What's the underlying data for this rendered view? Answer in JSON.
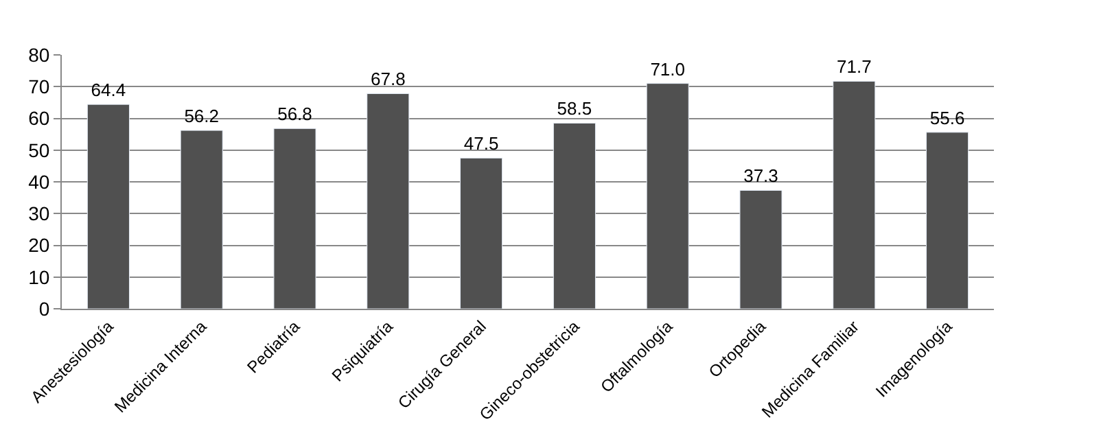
{
  "chart_data": {
    "type": "bar",
    "categories": [
      "Anestesiología",
      "Medicina Interna",
      "Pediatría",
      "Psiquiatría",
      "Cirugía General",
      "Gineco-obstetricia",
      "Oftalmología",
      "Ortopedia",
      "Medicina Familiar",
      "Imagenología"
    ],
    "values": [
      64.4,
      56.2,
      56.8,
      67.8,
      47.5,
      58.5,
      71.0,
      37.3,
      71.7,
      55.6
    ],
    "value_labels": [
      "64.4",
      "56.2",
      "56.8",
      "67.8",
      "47.5",
      "58.5",
      "71.0",
      "37.3",
      "71.7",
      "55.6"
    ],
    "color": "#505050",
    "ylim": [
      0,
      80
    ],
    "yticks": [
      0,
      10,
      20,
      30,
      40,
      50,
      60,
      70,
      80
    ],
    "grid": "y",
    "legend": false
  }
}
